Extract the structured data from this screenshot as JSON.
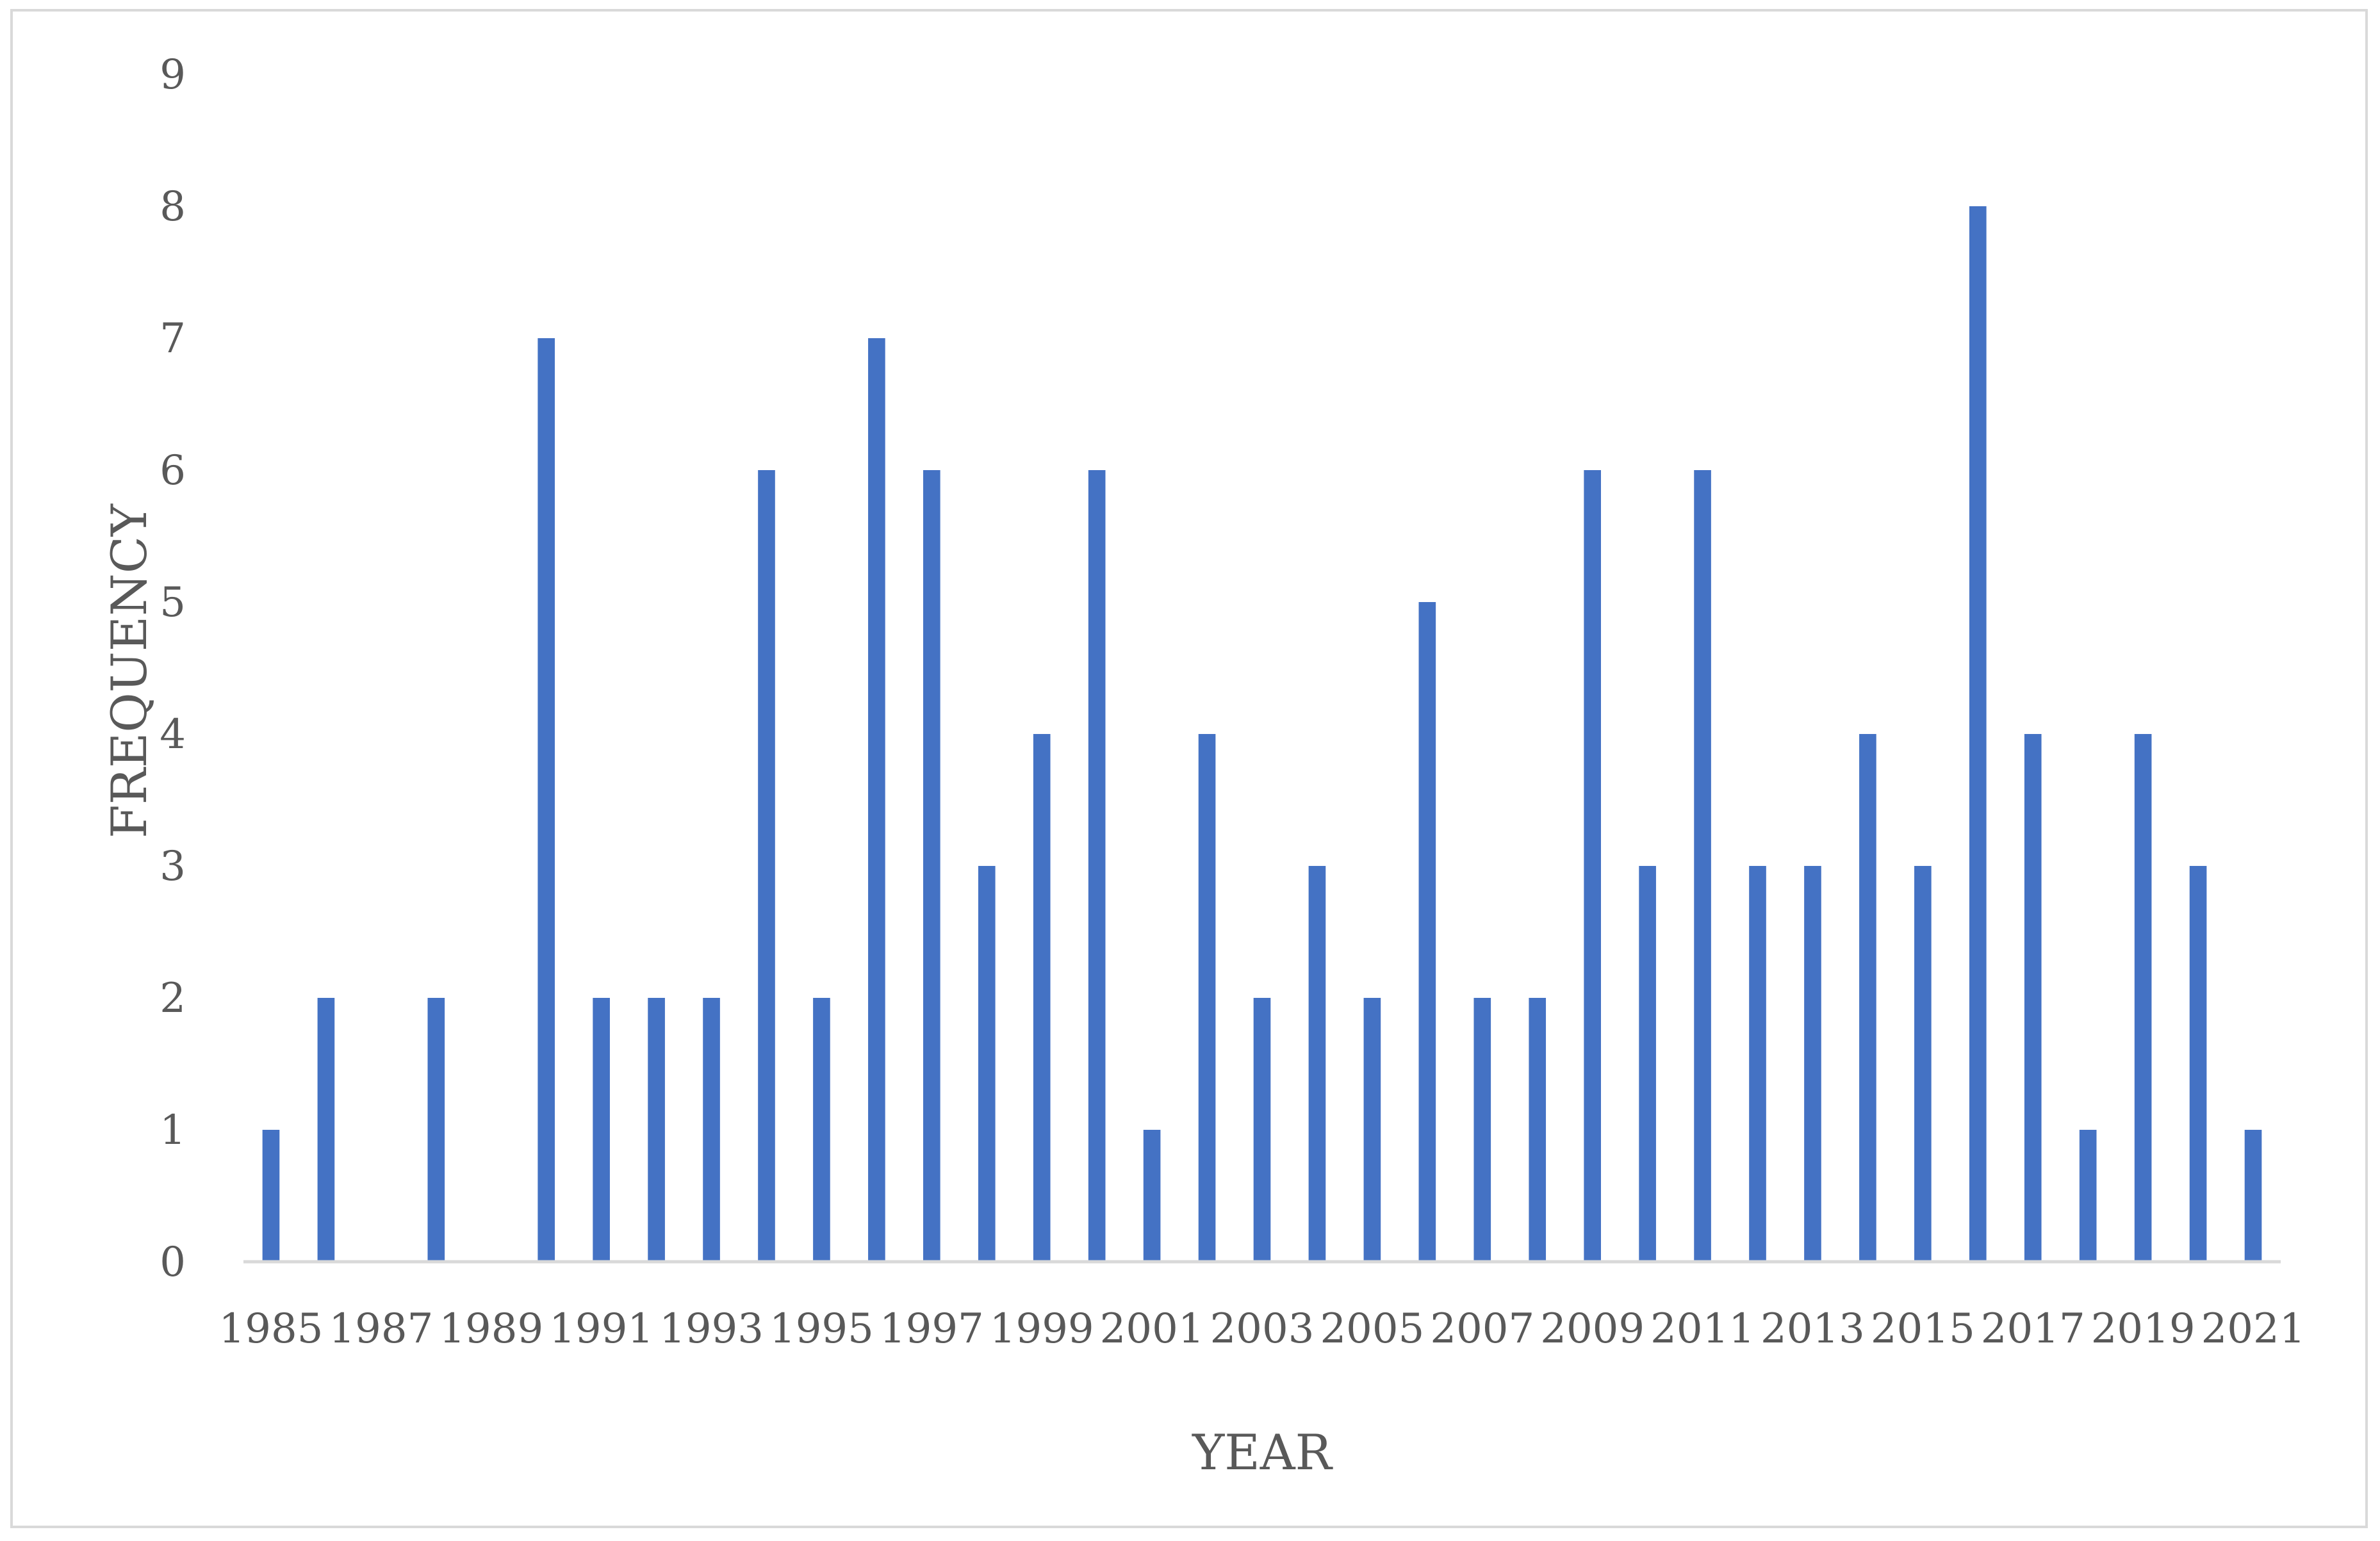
{
  "chart_data": {
    "type": "bar",
    "title": "",
    "xlabel": "YEAR",
    "ylabel": "FREQUENCY",
    "ylim": [
      0,
      9
    ],
    "yticks": [
      "0",
      "1",
      "2",
      "3",
      "4",
      "5",
      "6",
      "7",
      "8",
      "9"
    ],
    "categories": [
      "1985",
      "1986",
      "1987",
      "1988",
      "1989",
      "1990",
      "1991",
      "1992",
      "1993",
      "1994",
      "1995",
      "1996",
      "1997",
      "1998",
      "1999",
      "2000",
      "2001",
      "2002",
      "2003",
      "2004",
      "2005",
      "2006",
      "2007",
      "2008",
      "2009",
      "2010",
      "2011",
      "2012",
      "2013",
      "2014",
      "2015",
      "2016",
      "2017",
      "2018",
      "2019",
      "2020",
      "2021"
    ],
    "category_labels_shown": [
      "1985",
      "",
      "1987",
      "",
      "1989",
      "",
      "1991",
      "",
      "1993",
      "",
      "1995",
      "",
      "1997",
      "",
      "1999",
      "",
      "2001",
      "",
      "2003",
      "",
      "2005",
      "",
      "2007",
      "",
      "2009",
      "",
      "2011",
      "",
      "2013",
      "",
      "2015",
      "",
      "2017",
      "",
      "2019",
      "",
      "2021"
    ],
    "values": [
      1,
      2,
      0,
      2,
      0,
      7,
      2,
      2,
      2,
      6,
      2,
      7,
      6,
      3,
      4,
      6,
      1,
      4,
      2,
      3,
      2,
      5,
      2,
      2,
      6,
      3,
      6,
      3,
      3,
      4,
      3,
      8,
      4,
      1,
      4,
      3,
      1
    ],
    "colors": {
      "bar": "#4472c4",
      "axis": "#d9d9d9",
      "text": "#595959",
      "frame": "#d9d9d9"
    },
    "grid": false,
    "legend": "none"
  }
}
